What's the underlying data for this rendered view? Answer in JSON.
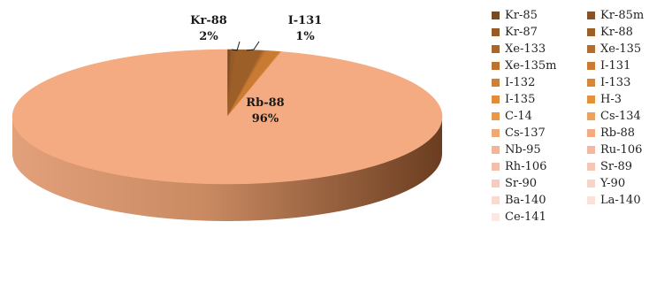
{
  "chart_data": {
    "type": "pie",
    "title": "",
    "legend_position": "right",
    "labels": [
      "Kr-85",
      "Kr-85m",
      "Kr-87",
      "Kr-88",
      "Xe-133",
      "Xe-135",
      "Xe-135m",
      "I-131",
      "I-132",
      "I-133",
      "I-135",
      "H-3",
      "C-14",
      "Cs-134",
      "Cs-137",
      "Rb-88",
      "Nb-95",
      "Ru-106",
      "Rh-106",
      "Sr-89",
      "Sr-90",
      "Y-90",
      "Ba-140",
      "La-140",
      "Ce-141"
    ],
    "colors": [
      "#7a4a20",
      "#8a5224",
      "#955a26",
      "#9d5f28",
      "#a9662b",
      "#b46d2e",
      "#bd7330",
      "#c97a33",
      "#d07f36",
      "#d88638",
      "#e08c3b",
      "#e4913e",
      "#e9984b",
      "#eea15d",
      "#f0a877",
      "#f4ab82",
      "#f3b49a",
      "#f2b8a2",
      "#f3bfab",
      "#f5c6b6",
      "#f6ccbe",
      "#f8d3c7",
      "#f9dacf",
      "#fbe1d8",
      "#fce8e0"
    ],
    "values": [
      0.2,
      0.1,
      0.3,
      2,
      0.1,
      0.1,
      0.1,
      1,
      0.05,
      0.05,
      0.05,
      0,
      0,
      0,
      0,
      96,
      0,
      0,
      0,
      0,
      0,
      0,
      0,
      0,
      0
    ],
    "slice_labels": [
      {
        "name": "Kr-88",
        "pct": "2%"
      },
      {
        "name": "I-131",
        "pct": "1%"
      },
      {
        "name": "Rb-88",
        "pct": "96%"
      }
    ]
  }
}
